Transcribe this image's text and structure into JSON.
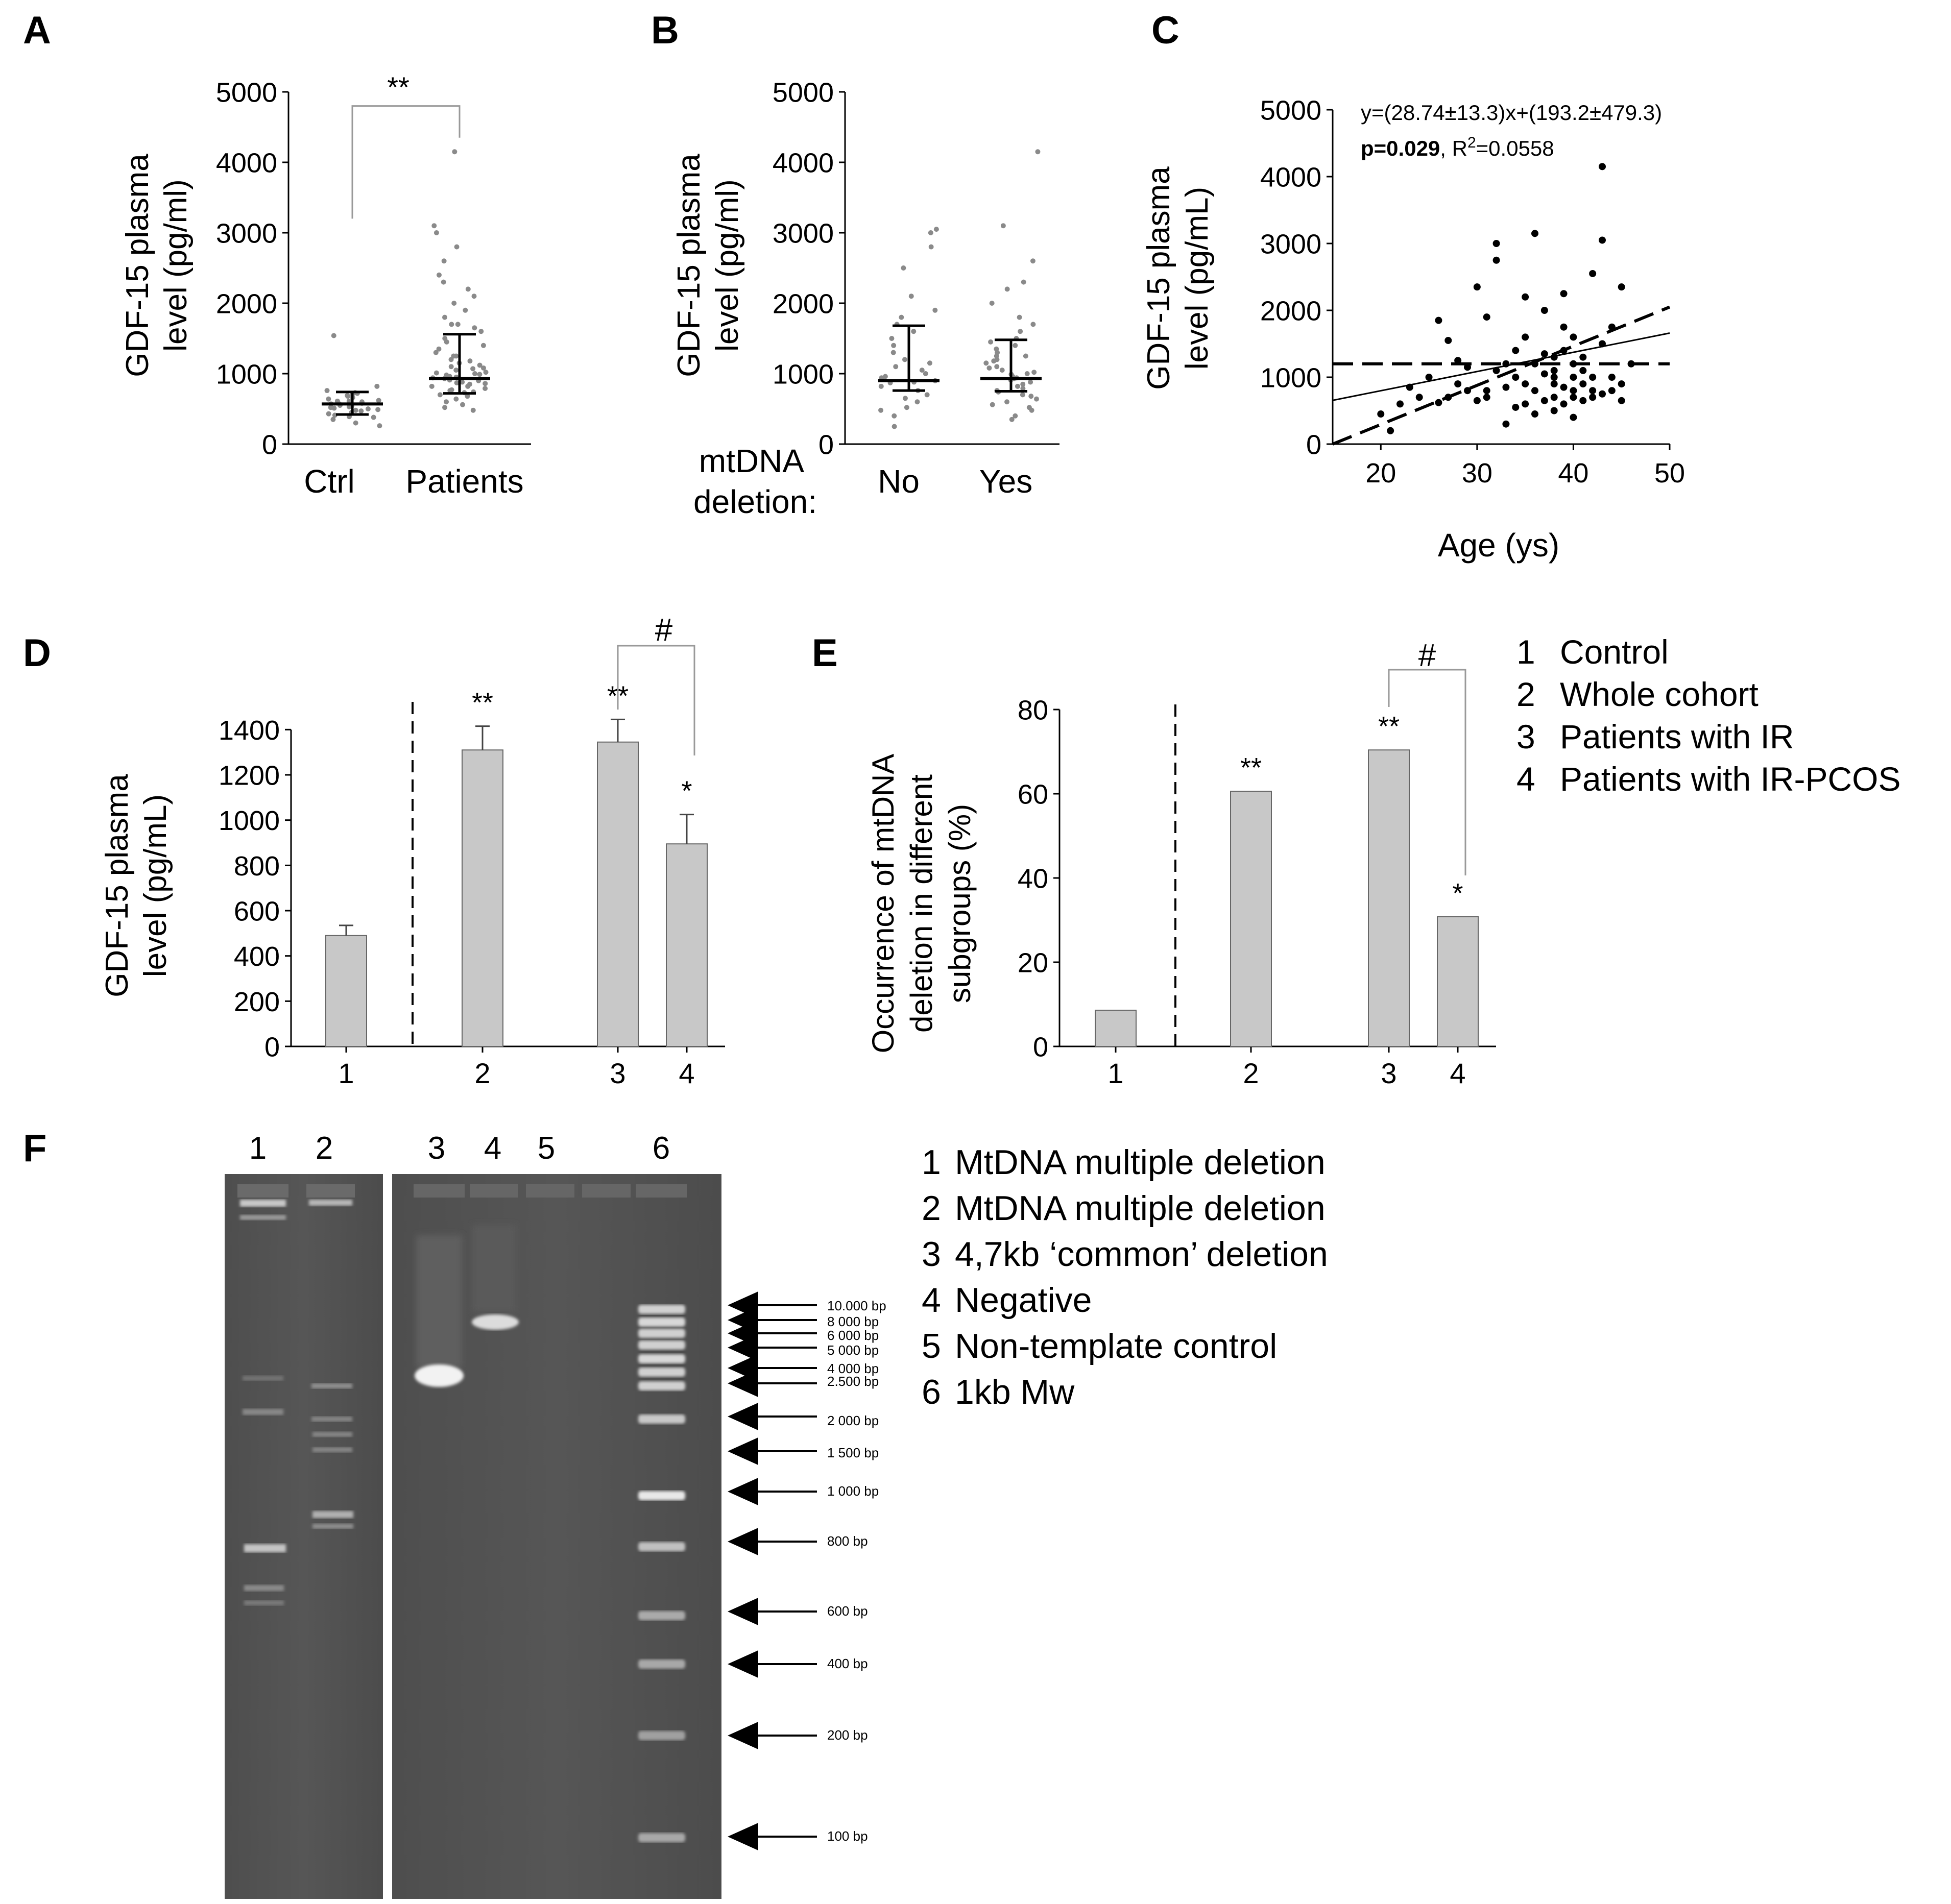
{
  "panels": {
    "A": {
      "letter": "A",
      "chart_data": {
        "type": "scatter",
        "categories": [
          "Ctrl",
          "Patients"
        ],
        "ylabel_line1": "GDF-15 plasma",
        "ylabel_line2": "level (pg/ml)",
        "ylim": [
          0,
          5000
        ],
        "yticks": [
          0,
          1000,
          2000,
          3000,
          4000,
          5000
        ],
        "medians": [
          570,
          930
        ],
        "iqr": [
          [
            420,
            740
          ],
          [
            720,
            1560
          ]
        ],
        "points": [
          [
            540,
            480,
            520,
            590,
            610,
            660,
            430,
            380,
            720,
            690,
            560,
            500,
            470,
            640,
            700,
            610,
            580,
            350,
            300,
            450,
            510,
            760,
            820,
            620,
            570,
            530,
            490,
            410,
            680,
            730,
            600,
            550,
            1540,
            260,
            390
          ],
          [
            930,
            880,
            760,
            700,
            1000,
            1100,
            1200,
            1300,
            1400,
            1500,
            1600,
            1700,
            1800,
            1900,
            2000,
            2100,
            2200,
            2400,
            2600,
            2800,
            3000,
            3100,
            4150,
            850,
            820,
            790,
            960,
            1050,
            1150,
            1250,
            900,
            870,
            640,
            600,
            520,
            480,
            1350,
            1450,
            1650,
            990,
            1020,
            1080,
            1120,
            740,
            680,
            560,
            940,
            910,
            1700,
            2300,
            1250,
            1180,
            1070,
            980,
            860,
            820,
            770,
            730,
            950,
            1010
          ]
        ],
        "significance": "**"
      }
    },
    "B": {
      "letter": "B",
      "chart_data": {
        "type": "scatter",
        "categories": [
          "No",
          "Yes"
        ],
        "group_label_line1": "mtDNA",
        "group_label_line2": "deletion:",
        "ylabel_line1": "GDF-15 plasma",
        "ylabel_line2": "level (pg/ml)",
        "ylim": [
          0,
          5000
        ],
        "yticks": [
          0,
          1000,
          2000,
          3000,
          4000,
          5000
        ],
        "medians": [
          900,
          930
        ],
        "iqr": [
          [
            760,
            1680
          ],
          [
            750,
            1480
          ]
        ],
        "points": [
          [
            900,
            880,
            760,
            700,
            1000,
            1100,
            1200,
            1300,
            1400,
            1500,
            1700,
            1900,
            2100,
            2500,
            2800,
            3000,
            3050,
            650,
            600,
            520,
            480,
            250,
            400,
            820,
            960,
            1050,
            1150,
            1600,
            1800,
            940,
            870
          ],
          [
            930,
            880,
            760,
            700,
            1000,
            1100,
            1200,
            1300,
            1400,
            1500,
            1600,
            1800,
            2000,
            2200,
            2600,
            3100,
            4150,
            850,
            820,
            790,
            960,
            1050,
            1150,
            1250,
            640,
            600,
            520,
            480,
            1350,
            1450,
            990,
            1020,
            1080,
            740,
            680,
            560,
            940,
            910,
            2300,
            1700,
            1250,
            1180,
            400,
            350
          ]
        ]
      }
    },
    "C": {
      "letter": "C",
      "chart_data": {
        "type": "scatter",
        "xlabel": "Age (ys)",
        "ylabel_line1": "GDF-15 plasma",
        "ylabel_line2": "level (pg/mL)",
        "xlim": [
          15,
          50
        ],
        "ylim": [
          0,
          5000
        ],
        "xticks": [
          20,
          30,
          40,
          50
        ],
        "yticks": [
          0,
          1000,
          2000,
          3000,
          4000,
          5000
        ],
        "equation": "y=(28.74±13.3)x+(193.2±479.3)",
        "p_text": "p=0.029",
        "r2_text": ", R",
        "r2_sup": "2",
        "r2_value": "=0.0558",
        "fit": {
          "slope": 28.74,
          "intercept": 193.2
        },
        "ci_lower": [
          [
            15,
            0
          ],
          [
            50,
            2050
          ]
        ],
        "ci_upper": [
          [
            15,
            1200
          ],
          [
            50,
            1200
          ]
        ],
        "points": [
          [
            20,
            450
          ],
          [
            21,
            200
          ],
          [
            22,
            600
          ],
          [
            23,
            850
          ],
          [
            24,
            700
          ],
          [
            25,
            1000
          ],
          [
            26,
            620
          ],
          [
            26,
            1850
          ],
          [
            27,
            700
          ],
          [
            27,
            1550
          ],
          [
            28,
            1250
          ],
          [
            28,
            900
          ],
          [
            29,
            800
          ],
          [
            29,
            1150
          ],
          [
            30,
            2350
          ],
          [
            30,
            650
          ],
          [
            31,
            800
          ],
          [
            31,
            1900
          ],
          [
            31,
            700
          ],
          [
            32,
            3000
          ],
          [
            32,
            2750
          ],
          [
            32,
            1100
          ],
          [
            33,
            300
          ],
          [
            33,
            850
          ],
          [
            33,
            1200
          ],
          [
            34,
            1000
          ],
          [
            34,
            1400
          ],
          [
            34,
            550
          ],
          [
            35,
            600
          ],
          [
            35,
            900
          ],
          [
            35,
            1600
          ],
          [
            35,
            2200
          ],
          [
            36,
            3150
          ],
          [
            36,
            1200
          ],
          [
            36,
            800
          ],
          [
            36,
            450
          ],
          [
            37,
            1050
          ],
          [
            37,
            650
          ],
          [
            37,
            1350
          ],
          [
            37,
            2000
          ],
          [
            38,
            1000
          ],
          [
            38,
            700
          ],
          [
            38,
            500
          ],
          [
            38,
            900
          ],
          [
            38,
            1100
          ],
          [
            38,
            1300
          ],
          [
            39,
            1400
          ],
          [
            39,
            1750
          ],
          [
            39,
            2250
          ],
          [
            39,
            600
          ],
          [
            39,
            850
          ],
          [
            40,
            1000
          ],
          [
            40,
            1600
          ],
          [
            40,
            800
          ],
          [
            40,
            700
          ],
          [
            40,
            400
          ],
          [
            40,
            1200
          ],
          [
            41,
            1100
          ],
          [
            41,
            900
          ],
          [
            41,
            650
          ],
          [
            41,
            1300
          ],
          [
            42,
            2550
          ],
          [
            42,
            800
          ],
          [
            42,
            1000
          ],
          [
            42,
            700
          ],
          [
            43,
            4150
          ],
          [
            43,
            3050
          ],
          [
            43,
            1500
          ],
          [
            43,
            750
          ],
          [
            44,
            1750
          ],
          [
            44,
            1000
          ],
          [
            44,
            800
          ],
          [
            45,
            2350
          ],
          [
            45,
            650
          ],
          [
            45,
            900
          ],
          [
            46,
            1200
          ]
        ]
      }
    },
    "D": {
      "letter": "D",
      "chart_data": {
        "type": "bar",
        "categories": [
          "1",
          "2",
          "3",
          "4"
        ],
        "values": [
          490,
          1310,
          1345,
          895
        ],
        "errors": [
          45,
          105,
          100,
          130
        ],
        "ylabel_line1": "GDF-15 plasma",
        "ylabel_line2": "level (pg/mL)",
        "ylim": [
          0,
          1500
        ],
        "yticks": [
          0,
          200,
          400,
          600,
          800,
          1000,
          1200,
          1400
        ],
        "significance": [
          "",
          "**",
          "**",
          "*"
        ],
        "bracket_label": "#"
      }
    },
    "E": {
      "letter": "E",
      "chart_data": {
        "type": "bar",
        "categories": [
          "1",
          "2",
          "3",
          "4"
        ],
        "values": [
          8.6,
          60.6,
          70.4,
          30.8
        ],
        "ylabel_line1": "Occurrence of mtDNA",
        "ylabel_line2": "deletion  in different",
        "ylabel_line3": "subgroups (%)",
        "ylim": [
          0,
          80
        ],
        "yticks": [
          0,
          20,
          40,
          60,
          80
        ],
        "significance": [
          "",
          "**",
          "**",
          "*"
        ],
        "bracket_label": "#"
      }
    },
    "F": {
      "letter": "F",
      "lane_numbers": [
        "1",
        "2",
        "3",
        "4",
        "5",
        "6"
      ],
      "ladder_labels": [
        "10.000 bp",
        "8 000 bp",
        "6 000 bp",
        "5 000 bp",
        "4 000 bp",
        "2.500 bp",
        "2 000 bp",
        "1 500 bp",
        "1 000 bp",
        "800 bp",
        "600 bp",
        "400 bp",
        "200 bp",
        "100 bp"
      ]
    }
  },
  "legend_de": {
    "items": [
      {
        "num": "1",
        "label": "Control"
      },
      {
        "num": "2",
        "label": "Whole cohort"
      },
      {
        "num": "3",
        "label": "Patients with IR"
      },
      {
        "num": "4",
        "label": "Patients with IR-PCOS"
      }
    ]
  },
  "legend_f": {
    "items": [
      {
        "num": "1",
        "label": "MtDNA multiple deletion"
      },
      {
        "num": "2",
        "label": "MtDNA multiple deletion"
      },
      {
        "num": "3",
        "label": "4,7kb ‘common’ deletion"
      },
      {
        "num": "4",
        "label": "Negative"
      },
      {
        "num": "5",
        "label": "Non-template control"
      },
      {
        "num": "6",
        "label": "1kb Mw"
      }
    ]
  }
}
